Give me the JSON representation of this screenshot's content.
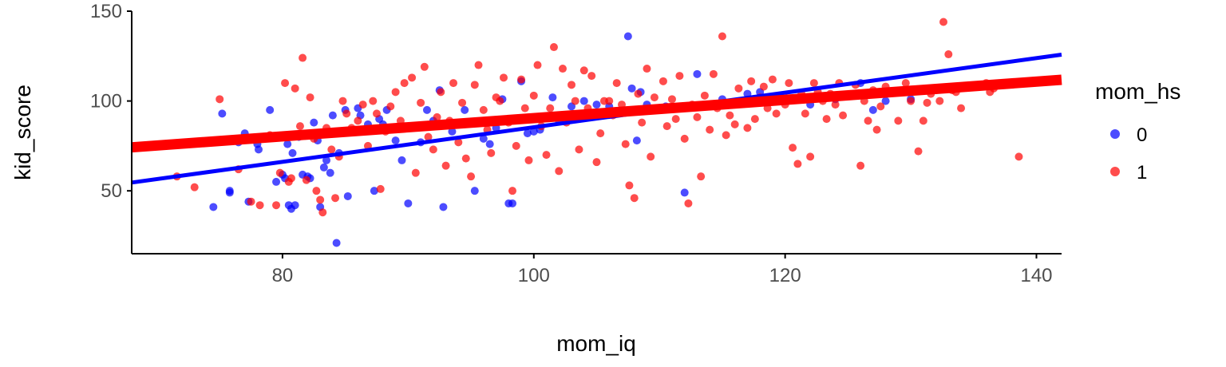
{
  "chart_data": {
    "type": "scatter",
    "xlabel": "mom_iq",
    "ylabel": "kid_score",
    "xlim": [
      68,
      142
    ],
    "ylim": [
      15,
      150
    ],
    "x_ticks": [
      80,
      100,
      120,
      140
    ],
    "y_ticks": [
      50,
      100,
      150
    ],
    "x_tick_labels": [
      "80",
      "100",
      "120",
      "140"
    ],
    "y_tick_labels": [
      "50",
      "100",
      "150"
    ],
    "grid": false,
    "legend": {
      "title": "mom_hs",
      "placement": "right"
    },
    "series": [
      {
        "name": "0",
        "color": "#0000ff",
        "fit": {
          "x": [
            68,
            142
          ],
          "y": [
            54.6,
            125.8
          ]
        },
        "points": [
          [
            74.5,
            41
          ],
          [
            75.2,
            93
          ],
          [
            75.8,
            50
          ],
          [
            75.8,
            49
          ],
          [
            76.5,
            77
          ],
          [
            77,
            82
          ],
          [
            77.3,
            44
          ],
          [
            77.5,
            79
          ],
          [
            78,
            76
          ],
          [
            78.1,
            73
          ],
          [
            79,
            95
          ],
          [
            79.5,
            55
          ],
          [
            80,
            59
          ],
          [
            80.2,
            57
          ],
          [
            80.4,
            76
          ],
          [
            80.5,
            42
          ],
          [
            80.7,
            40
          ],
          [
            80.8,
            71
          ],
          [
            81,
            42
          ],
          [
            81.3,
            80
          ],
          [
            81.6,
            59
          ],
          [
            82,
            58
          ],
          [
            82.2,
            57
          ],
          [
            82.5,
            88
          ],
          [
            82.8,
            78
          ],
          [
            83,
            41
          ],
          [
            83.3,
            63
          ],
          [
            83.5,
            67
          ],
          [
            83.8,
            60
          ],
          [
            84,
            92
          ],
          [
            84.3,
            21
          ],
          [
            84.5,
            71
          ],
          [
            85,
            95
          ],
          [
            85.2,
            47
          ],
          [
            85.8,
            84
          ],
          [
            86,
            96
          ],
          [
            86.2,
            92
          ],
          [
            86.8,
            87
          ],
          [
            87.3,
            50
          ],
          [
            87.7,
            90
          ],
          [
            88,
            87
          ],
          [
            88.3,
            95
          ],
          [
            89,
            78
          ],
          [
            89.5,
            67
          ],
          [
            90,
            43
          ],
          [
            91,
            77
          ],
          [
            91.5,
            95
          ],
          [
            92,
            89
          ],
          [
            92.5,
            106
          ],
          [
            92.8,
            41
          ],
          [
            93.5,
            83
          ],
          [
            94.5,
            95
          ],
          [
            95.3,
            50
          ],
          [
            96,
            79
          ],
          [
            96.5,
            76
          ],
          [
            97,
            85
          ],
          [
            97.5,
            101
          ],
          [
            98,
            43
          ],
          [
            98.3,
            43
          ],
          [
            99,
            111
          ],
          [
            99.5,
            82
          ],
          [
            100,
            83
          ],
          [
            100.5,
            84
          ],
          [
            101.5,
            102
          ],
          [
            102,
            89
          ],
          [
            103,
            97
          ],
          [
            104,
            100
          ],
          [
            105,
            98
          ],
          [
            106,
            97
          ],
          [
            107.5,
            136
          ],
          [
            107.8,
            107
          ],
          [
            108.2,
            78
          ],
          [
            108.5,
            105
          ],
          [
            109,
            98
          ],
          [
            110.5,
            97
          ],
          [
            112,
            49
          ],
          [
            113,
            115
          ],
          [
            115,
            101
          ],
          [
            117,
            104
          ],
          [
            118,
            105
          ],
          [
            122,
            98
          ],
          [
            124,
            101
          ],
          [
            126,
            110
          ],
          [
            127,
            95
          ],
          [
            128,
            100
          ],
          [
            130,
            101
          ]
        ]
      },
      {
        "name": "1",
        "color": "#ff0000",
        "fit": {
          "x": [
            68,
            142
          ],
          "y": [
            74.2,
            111.8
          ]
        },
        "points": [
          [
            71.6,
            58
          ],
          [
            73,
            52
          ],
          [
            75,
            101
          ],
          [
            76.5,
            62
          ],
          [
            77.5,
            44
          ],
          [
            78.2,
            42
          ],
          [
            79,
            81
          ],
          [
            79.5,
            42
          ],
          [
            79.8,
            60
          ],
          [
            80.2,
            110
          ],
          [
            80.5,
            55
          ],
          [
            80.7,
            57
          ],
          [
            81,
            107
          ],
          [
            81.4,
            86
          ],
          [
            81.6,
            124
          ],
          [
            81.9,
            56
          ],
          [
            82.2,
            102
          ],
          [
            82.5,
            79
          ],
          [
            82.7,
            50
          ],
          [
            83,
            45
          ],
          [
            83.2,
            38
          ],
          [
            83.5,
            85
          ],
          [
            83.9,
            73
          ],
          [
            84.2,
            46
          ],
          [
            84.5,
            69
          ],
          [
            84.8,
            100
          ],
          [
            85.1,
            93
          ],
          [
            85.5,
            85
          ],
          [
            86,
            89
          ],
          [
            86.4,
            98
          ],
          [
            86.8,
            75
          ],
          [
            87.2,
            100
          ],
          [
            87.5,
            93
          ],
          [
            87.8,
            51
          ],
          [
            88.2,
            83
          ],
          [
            88.6,
            97
          ],
          [
            89,
            105
          ],
          [
            89.4,
            89
          ],
          [
            89.7,
            110
          ],
          [
            90,
            85
          ],
          [
            90.3,
            113
          ],
          [
            90.6,
            60
          ],
          [
            91,
            99
          ],
          [
            91.3,
            119
          ],
          [
            91.6,
            80
          ],
          [
            92,
            73
          ],
          [
            92.3,
            91
          ],
          [
            92.6,
            105
          ],
          [
            93,
            64
          ],
          [
            93.3,
            89
          ],
          [
            93.6,
            110
          ],
          [
            94,
            77
          ],
          [
            94.3,
            99
          ],
          [
            94.6,
            68
          ],
          [
            95,
            58
          ],
          [
            95.3,
            109
          ],
          [
            95.6,
            120
          ],
          [
            96,
            95
          ],
          [
            96.3,
            84
          ],
          [
            96.6,
            71
          ],
          [
            97,
            102
          ],
          [
            97.3,
            100
          ],
          [
            97.6,
            113
          ],
          [
            98,
            88
          ],
          [
            98.3,
            50
          ],
          [
            98.6,
            75
          ],
          [
            99,
            112
          ],
          [
            99.3,
            96
          ],
          [
            99.6,
            67
          ],
          [
            100,
            103
          ],
          [
            100.3,
            120
          ],
          [
            100.6,
            86
          ],
          [
            101,
            70
          ],
          [
            101.3,
            96
          ],
          [
            101.6,
            130
          ],
          [
            102,
            61
          ],
          [
            102.3,
            118
          ],
          [
            102.6,
            88
          ],
          [
            103,
            109
          ],
          [
            103.3,
            100
          ],
          [
            103.6,
            73
          ],
          [
            104,
            117
          ],
          [
            104.3,
            96
          ],
          [
            104.6,
            114
          ],
          [
            105,
            66
          ],
          [
            105.3,
            82
          ],
          [
            105.6,
            100
          ],
          [
            106,
            100
          ],
          [
            106.3,
            92
          ],
          [
            106.6,
            110
          ],
          [
            107,
            98
          ],
          [
            107.3,
            76
          ],
          [
            107.6,
            53
          ],
          [
            108,
            46
          ],
          [
            108.3,
            104
          ],
          [
            108.6,
            88
          ],
          [
            109,
            118
          ],
          [
            109.3,
            69
          ],
          [
            109.6,
            102
          ],
          [
            110,
            95
          ],
          [
            110.3,
            111
          ],
          [
            110.6,
            86
          ],
          [
            111,
            101
          ],
          [
            111.3,
            90
          ],
          [
            111.6,
            114
          ],
          [
            112,
            79
          ],
          [
            112.3,
            43
          ],
          [
            112.6,
            98
          ],
          [
            113,
            91
          ],
          [
            113.3,
            58
          ],
          [
            113.6,
            103
          ],
          [
            114,
            84
          ],
          [
            114.3,
            115
          ],
          [
            114.6,
            96
          ],
          [
            115,
            136
          ],
          [
            115.3,
            81
          ],
          [
            115.6,
            92
          ],
          [
            116,
            87
          ],
          [
            116.3,
            107
          ],
          [
            116.6,
            99
          ],
          [
            117,
            85
          ],
          [
            117.3,
            111
          ],
          [
            117.6,
            90
          ],
          [
            118,
            102
          ],
          [
            118.3,
            108
          ],
          [
            118.6,
            96
          ],
          [
            119,
            112
          ],
          [
            119.3,
            93
          ],
          [
            119.6,
            100
          ],
          [
            120,
            98
          ],
          [
            120.3,
            110
          ],
          [
            120.6,
            74
          ],
          [
            121,
            65
          ],
          [
            121.3,
            104
          ],
          [
            121.6,
            93
          ],
          [
            122,
            69
          ],
          [
            122.3,
            110
          ],
          [
            122.6,
            105
          ],
          [
            123,
            100
          ],
          [
            123.3,
            90
          ],
          [
            123.6,
            104
          ],
          [
            124,
            98
          ],
          [
            124.3,
            110
          ],
          [
            124.6,
            92
          ],
          [
            125,
            103
          ],
          [
            125.6,
            109
          ],
          [
            126,
            64
          ],
          [
            126.3,
            100
          ],
          [
            126.6,
            89
          ],
          [
            127,
            106
          ],
          [
            127.3,
            84
          ],
          [
            127.6,
            97
          ],
          [
            128,
            108
          ],
          [
            128.6,
            105
          ],
          [
            129,
            89
          ],
          [
            129.6,
            110
          ],
          [
            130,
            100
          ],
          [
            130.6,
            72
          ],
          [
            131,
            89
          ],
          [
            131.3,
            99
          ],
          [
            131.6,
            104
          ],
          [
            132,
            106
          ],
          [
            132.3,
            100
          ],
          [
            132.6,
            144
          ],
          [
            133,
            126
          ],
          [
            133.3,
            106
          ],
          [
            133.6,
            105
          ],
          [
            134,
            96
          ],
          [
            136,
            110
          ],
          [
            136.3,
            105
          ],
          [
            136.6,
            107
          ],
          [
            138.6,
            69
          ]
        ]
      }
    ]
  }
}
